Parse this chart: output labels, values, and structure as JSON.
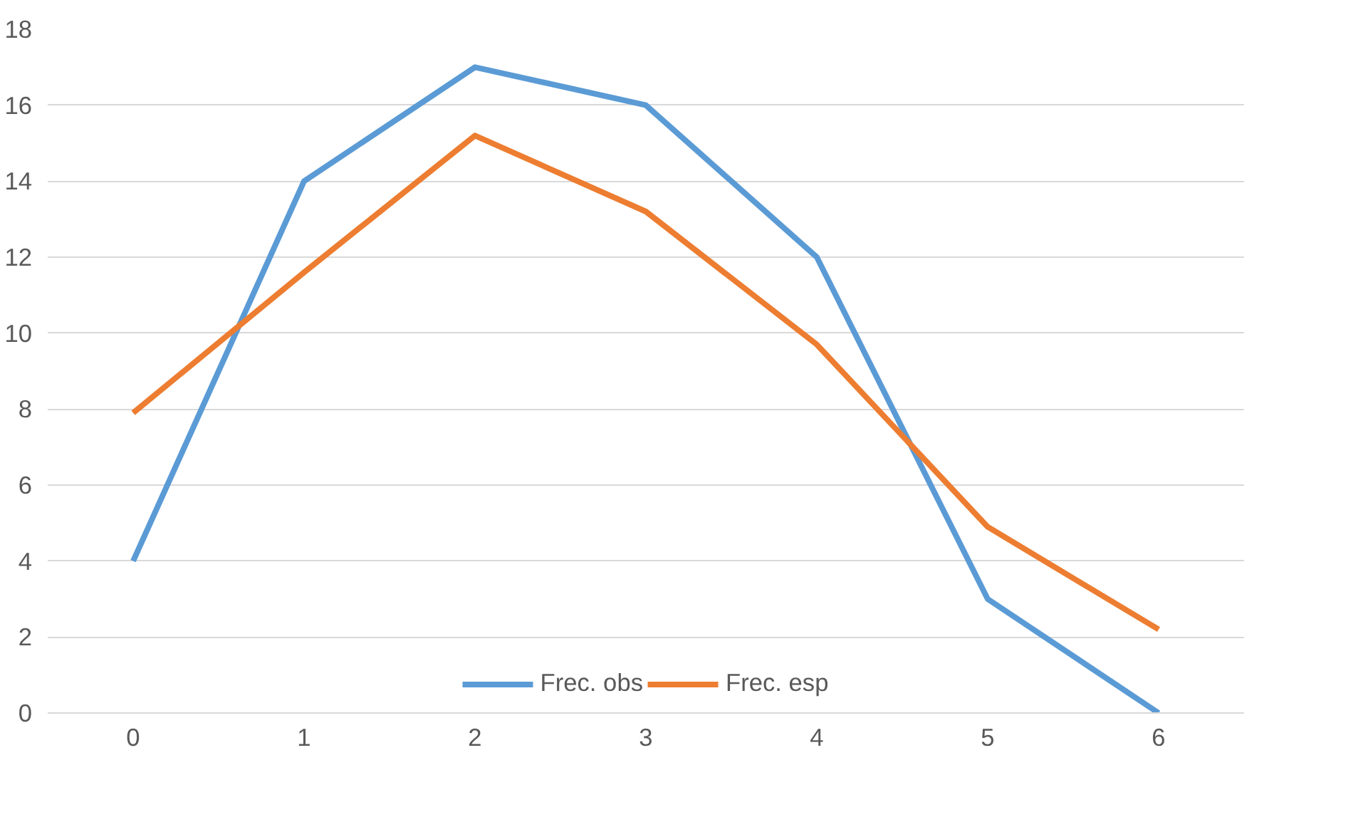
{
  "chart_data": {
    "type": "line",
    "categories": [
      "0",
      "1",
      "2",
      "3",
      "4",
      "5",
      "6"
    ],
    "series": [
      {
        "name": "Frec. obs",
        "color": "#5b9bd5",
        "values": [
          4,
          14,
          17,
          16,
          12,
          3,
          0
        ]
      },
      {
        "name": "Frec. esp",
        "color": "#ed7d31",
        "values": [
          7.9,
          11.6,
          15.2,
          13.2,
          9.7,
          4.9,
          2.2
        ]
      }
    ],
    "ylim": [
      0,
      18
    ],
    "yticks": [
      0,
      2,
      4,
      6,
      8,
      10,
      12,
      14,
      16,
      18
    ],
    "grid": "y",
    "legend": "bottom",
    "marker": "none",
    "line_style": "solid"
  }
}
